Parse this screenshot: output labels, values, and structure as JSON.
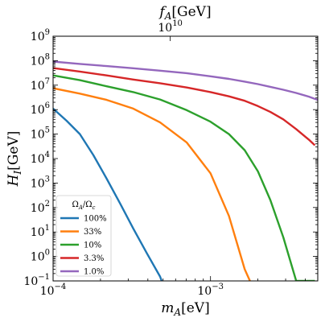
{
  "chart_data": {
    "type": "line",
    "title": "",
    "xlabel": {
      "main": "m",
      "sub": "A",
      "unit": "[eV]"
    },
    "ylabel": {
      "main": "H",
      "sub": "I",
      "unit": "[GeV]"
    },
    "top_xlabel": {
      "main": "f",
      "sub": "A",
      "unit": "[GeV]"
    },
    "top_xtick": {
      "base": "10",
      "exp": "10",
      "at_mA": 0.000555
    },
    "xscale": "log",
    "yscale": "log",
    "xlim": [
      0.0001,
      0.0048
    ],
    "ylim": [
      0.1,
      1000000000
    ],
    "xticks": [
      {
        "value": 0.0001,
        "base": "10",
        "exp": "−4"
      },
      {
        "value": 0.001,
        "base": "10",
        "exp": "−3"
      }
    ],
    "yticks": [
      {
        "value": 0.1,
        "base": "10",
        "exp": "−1"
      },
      {
        "value": 1,
        "base": "10",
        "exp": "0"
      },
      {
        "value": 10,
        "base": "10",
        "exp": "1"
      },
      {
        "value": 100,
        "base": "10",
        "exp": "2"
      },
      {
        "value": 1000,
        "base": "10",
        "exp": "3"
      },
      {
        "value": 10000,
        "base": "10",
        "exp": "4"
      },
      {
        "value": 100000,
        "base": "10",
        "exp": "5"
      },
      {
        "value": 1000000,
        "base": "10",
        "exp": "6"
      },
      {
        "value": 10000000,
        "base": "10",
        "exp": "7"
      },
      {
        "value": 100000000,
        "base": "10",
        "exp": "8"
      },
      {
        "value": 1000000000,
        "base": "10",
        "exp": "9"
      }
    ],
    "grid": false,
    "legend": {
      "placement": "lower-left",
      "title": {
        "main": "Ω",
        "sub1": "A",
        "mid": "/Ω",
        "sub2": "c"
      }
    },
    "series": [
      {
        "name": "100%",
        "color": "#1f77b4",
        "x": [
          0.0001,
          0.000122,
          0.000148,
          0.00018,
          0.000219,
          0.000266,
          0.000323,
          0.000393,
          0.000478,
          0.000581,
          0.000654
        ],
        "y": [
          1100000.0,
          350000.0,
          100000.0,
          14000.0,
          1500.0,
          150.0,
          14.0,
          1.4,
          0.15,
          0.0,
          0.0
        ]
      },
      {
        "name": "33%",
        "color": "#ff7f0e",
        "x": [
          0.0001,
          0.000148,
          0.000219,
          0.000323,
          0.000478,
          0.000707,
          0.001,
          0.00131,
          0.00165,
          0.00178
        ],
        "y": [
          7500000.0,
          4500000.0,
          2500000.0,
          1100000.0,
          300000.0,
          45000.0,
          2500.0,
          45.0,
          0.3,
          0.1
        ]
      },
      {
        "name": "10%",
        "color": "#2ca02c",
        "x": [
          0.0001,
          0.000148,
          0.000219,
          0.000323,
          0.000478,
          0.000707,
          0.001,
          0.00131,
          0.00165,
          0.002,
          0.0024,
          0.0029,
          0.0035,
          0.0042,
          0.0046
        ],
        "y": [
          25000000.0,
          16000000.0,
          9000000.0,
          5200000.0,
          2600000.0,
          950000.0,
          320000.0,
          100000.0,
          22000.0,
          3000.0,
          200.0,
          6.0,
          0.1,
          0.1,
          0.1
        ]
      },
      {
        "name": "3.3%",
        "color": "#d62728",
        "x": [
          0.0001,
          0.000148,
          0.000219,
          0.000323,
          0.000478,
          0.000707,
          0.001,
          0.00131,
          0.00165,
          0.002,
          0.0024,
          0.0029,
          0.0035,
          0.0042,
          0.0046
        ],
        "y": [
          50000000.0,
          36000000.0,
          25000000.0,
          17000000.0,
          12000000.0,
          8000000.0,
          5200000.0,
          3500000.0,
          2300000.0,
          1400000.0,
          800000.0,
          400000.0,
          160000.0,
          60000.0,
          35000.0
        ]
      },
      {
        "name": "1.0%",
        "color": "#9467bd",
        "x": [
          0.0001,
          0.000148,
          0.000219,
          0.000323,
          0.000478,
          0.000707,
          0.001,
          0.00131,
          0.00165,
          0.002,
          0.0024,
          0.0029,
          0.0035,
          0.0042,
          0.0048
        ],
        "y": [
          92000000.0,
          74000000.0,
          60000000.0,
          49000000.0,
          39000000.0,
          31000000.0,
          23000000.0,
          18000000.0,
          14000000.0,
          11000000.0,
          8500000.0,
          6500000.0,
          4800000.0,
          3400000.0,
          2500000.0
        ]
      }
    ]
  }
}
